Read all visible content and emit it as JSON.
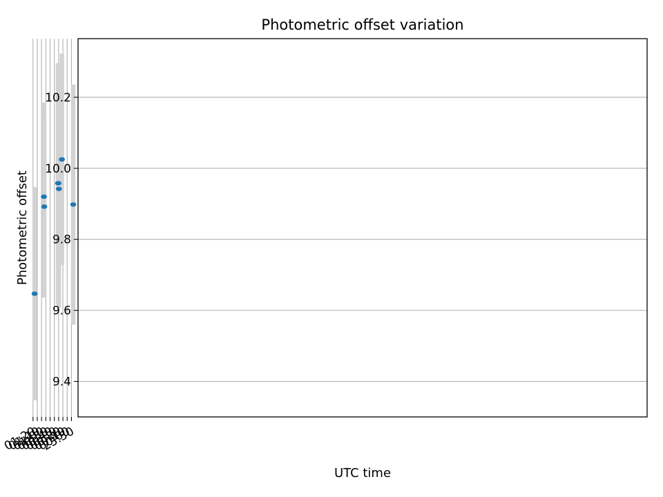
{
  "chart_data": {
    "type": "scatter",
    "title": "Photometric offset variation",
    "xlabel": "UTC time",
    "ylabel": "Photometric offset",
    "grid": true,
    "x_axis_type": "time",
    "xlim": [
      "23:34:30",
      "01:21:00"
    ],
    "ylim": [
      9.3,
      10.365
    ],
    "x_ticks": [
      {
        "time": "23:50",
        "label": "23:50"
      },
      {
        "time": "24:00",
        "label": "00:00"
      },
      {
        "time": "24:10",
        "label": "00:10"
      },
      {
        "time": "24:20",
        "label": "00:20"
      },
      {
        "time": "24:30",
        "label": "00:30"
      },
      {
        "time": "24:40",
        "label": "00:40"
      },
      {
        "time": "24:50",
        "label": "00:50"
      },
      {
        "time": "25:00",
        "label": "01:00"
      },
      {
        "time": "25:10",
        "label": "01:10"
      },
      {
        "time": "25:20",
        "label": "01:20"
      }
    ],
    "y_ticks": [
      {
        "value": 9.4,
        "label": "9.4"
      },
      {
        "value": 9.6,
        "label": "9.6"
      },
      {
        "value": 9.8,
        "label": "9.8"
      },
      {
        "value": 10.0,
        "label": "10.0"
      },
      {
        "value": 10.2,
        "label": "10.2"
      }
    ],
    "point_color": "#1f77b4",
    "errorbar_color": "#d3d3d3",
    "points": [
      {
        "time": "23:45:49",
        "y": 9.898,
        "yerr": 0.338
      },
      {
        "time": "24:12:20",
        "y": 10.025,
        "yerr": 0.298
      },
      {
        "time": "24:19:24",
        "y": 9.942,
        "yerr": 0.335
      },
      {
        "time": "24:20:21",
        "y": 9.958,
        "yerr": 0.258
      },
      {
        "time": "24:21:25",
        "y": 9.958,
        "yerr": 0.338
      },
      {
        "time": "24:53:42",
        "y": 9.892,
        "yerr": 0.256
      },
      {
        "time": "24:54:31",
        "y": 9.92,
        "yerr": 0.265
      },
      {
        "time": "25:16:19",
        "y": 9.647,
        "yerr": 0.3
      }
    ]
  }
}
